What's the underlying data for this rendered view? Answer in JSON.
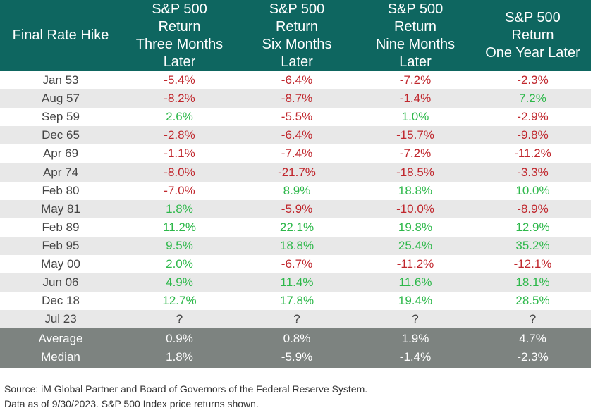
{
  "chart_data": {
    "type": "table",
    "columns": [
      "Final Rate Hike",
      "S&P 500\nReturn\nThree Months\nLater",
      "S&P 500\nReturn\nSix Months\nLater",
      "S&P 500\nReturn\nNine Months\nLater",
      "S&P 500\nReturn\nOne Year Later"
    ],
    "rows": [
      [
        "Jan 53",
        "-5.4%",
        "-6.4%",
        "-7.2%",
        "-2.3%"
      ],
      [
        "Aug 57",
        "-8.2%",
        "-8.7%",
        "-1.4%",
        "7.2%"
      ],
      [
        "Sep 59",
        "2.6%",
        "-5.5%",
        "1.0%",
        "-2.9%"
      ],
      [
        "Dec 65",
        "-2.8%",
        "-6.4%",
        "-15.7%",
        "-9.8%"
      ],
      [
        "Apr 69",
        "-1.1%",
        "-7.4%",
        "-7.2%",
        "-11.2%"
      ],
      [
        "Apr 74",
        "-8.0%",
        "-21.7%",
        "-18.5%",
        "-3.3%"
      ],
      [
        "Feb 80",
        "-7.0%",
        "8.9%",
        "18.8%",
        "10.0%"
      ],
      [
        "May 81",
        "1.8%",
        "-5.9%",
        "-10.0%",
        "-8.9%"
      ],
      [
        "Feb 89",
        "11.2%",
        "22.1%",
        "19.8%",
        "12.9%"
      ],
      [
        "Feb 95",
        "9.5%",
        "18.8%",
        "25.4%",
        "35.2%"
      ],
      [
        "May 00",
        "2.0%",
        "-6.7%",
        "-11.2%",
        "-12.1%"
      ],
      [
        "Jun 06",
        "4.9%",
        "11.4%",
        "11.6%",
        "18.1%"
      ],
      [
        "Dec 18",
        "12.7%",
        "17.8%",
        "19.4%",
        "28.5%"
      ],
      [
        "Jul 23",
        "?",
        "?",
        "?",
        "?"
      ]
    ],
    "summary": [
      [
        "Average",
        "0.9%",
        "0.8%",
        "1.9%",
        "4.7%"
      ],
      [
        "Median",
        "1.8%",
        "-5.9%",
        "-1.4%",
        "-2.3%"
      ]
    ]
  },
  "colors": {
    "header_bg": "#0e6660",
    "summary_bg": "#7d8380",
    "negative": "#c0272d",
    "positive": "#2db84a",
    "stripe": "#e8e8e8"
  },
  "footnote": {
    "line1": "Source: iM Global Partner and Board of Governors of the Federal Reserve System.",
    "line2": "Data as of 9/30/2023. S&P 500 Index price returns shown."
  }
}
